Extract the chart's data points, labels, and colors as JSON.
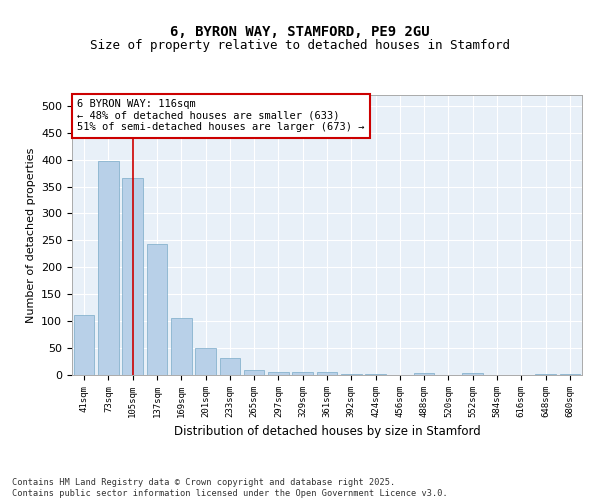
{
  "title1": "6, BYRON WAY, STAMFORD, PE9 2GU",
  "title2": "Size of property relative to detached houses in Stamford",
  "xlabel": "Distribution of detached houses by size in Stamford",
  "ylabel": "Number of detached properties",
  "categories": [
    "41sqm",
    "73sqm",
    "105sqm",
    "137sqm",
    "169sqm",
    "201sqm",
    "233sqm",
    "265sqm",
    "297sqm",
    "329sqm",
    "361sqm",
    "392sqm",
    "424sqm",
    "456sqm",
    "488sqm",
    "520sqm",
    "552sqm",
    "584sqm",
    "616sqm",
    "648sqm",
    "680sqm"
  ],
  "values": [
    112,
    398,
    365,
    243,
    105,
    50,
    31,
    10,
    5,
    5,
    5,
    2,
    1,
    0,
    3,
    0,
    3,
    0,
    0,
    2,
    1
  ],
  "bar_color": "#b8d0e8",
  "bar_edgecolor": "#7aaac8",
  "vline_x": 2.0,
  "vline_color": "#cc0000",
  "annotation_text": "6 BYRON WAY: 116sqm\n← 48% of detached houses are smaller (633)\n51% of semi-detached houses are larger (673) →",
  "annotation_box_color": "#ffffff",
  "annotation_box_edgecolor": "#cc0000",
  "ylim": [
    0,
    520
  ],
  "yticks": [
    0,
    50,
    100,
    150,
    200,
    250,
    300,
    350,
    400,
    450,
    500
  ],
  "bg_color": "#e8f0f8",
  "fig_bg_color": "#ffffff",
  "footer": "Contains HM Land Registry data © Crown copyright and database right 2025.\nContains public sector information licensed under the Open Government Licence v3.0.",
  "grid_color": "#ffffff",
  "title1_fontsize": 10,
  "title2_fontsize": 9
}
